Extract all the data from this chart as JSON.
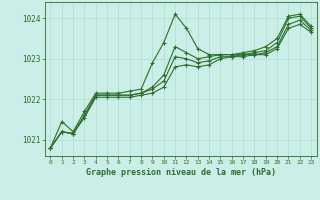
{
  "title": "Graphe pression niveau de la mer (hPa)",
  "background_color": "#cceee8",
  "grid_color": "#aaddcc",
  "line_color": "#2d6e2d",
  "xlim": [
    -0.5,
    23.5
  ],
  "ylim": [
    1020.6,
    1024.4
  ],
  "yticks": [
    1021,
    1022,
    1023,
    1024
  ],
  "xticks": [
    0,
    1,
    2,
    3,
    4,
    5,
    6,
    7,
    8,
    9,
    10,
    11,
    12,
    13,
    14,
    15,
    16,
    17,
    18,
    19,
    20,
    21,
    22,
    23
  ],
  "series": {
    "line1": [
      1020.8,
      1021.45,
      1021.2,
      1021.7,
      1022.15,
      1022.15,
      1022.15,
      1022.2,
      1022.25,
      1022.9,
      1023.4,
      1024.1,
      1023.75,
      1023.25,
      1023.1,
      1023.1,
      1023.1,
      1023.15,
      1023.2,
      1023.3,
      1023.5,
      1024.05,
      1024.1,
      1023.8
    ],
    "line2": [
      1020.8,
      1021.2,
      1021.15,
      1021.6,
      1022.1,
      1022.1,
      1022.1,
      1022.1,
      1022.15,
      1022.3,
      1022.6,
      1023.3,
      1023.15,
      1023.0,
      1023.05,
      1023.1,
      1023.1,
      1023.1,
      1023.15,
      1023.2,
      1023.4,
      1024.0,
      1024.05,
      1023.75
    ],
    "line3": [
      1020.8,
      1021.2,
      1021.15,
      1021.6,
      1022.1,
      1022.1,
      1022.1,
      1022.1,
      1022.15,
      1022.25,
      1022.45,
      1023.05,
      1023.0,
      1022.9,
      1022.95,
      1023.05,
      1023.05,
      1023.1,
      1023.1,
      1023.15,
      1023.3,
      1023.85,
      1023.95,
      1023.7
    ],
    "line4": [
      1020.8,
      1021.2,
      1021.15,
      1021.55,
      1022.05,
      1022.05,
      1022.05,
      1022.05,
      1022.1,
      1022.15,
      1022.3,
      1022.8,
      1022.85,
      1022.8,
      1022.85,
      1023.0,
      1023.05,
      1023.05,
      1023.1,
      1023.1,
      1023.25,
      1023.75,
      1023.85,
      1023.65
    ]
  },
  "marker": "+",
  "markersize": 3,
  "linewidth": 0.8,
  "ylabel_fontsize": 5.5,
  "xlabel_fontsize": 4.5,
  "title_fontsize": 6.0
}
